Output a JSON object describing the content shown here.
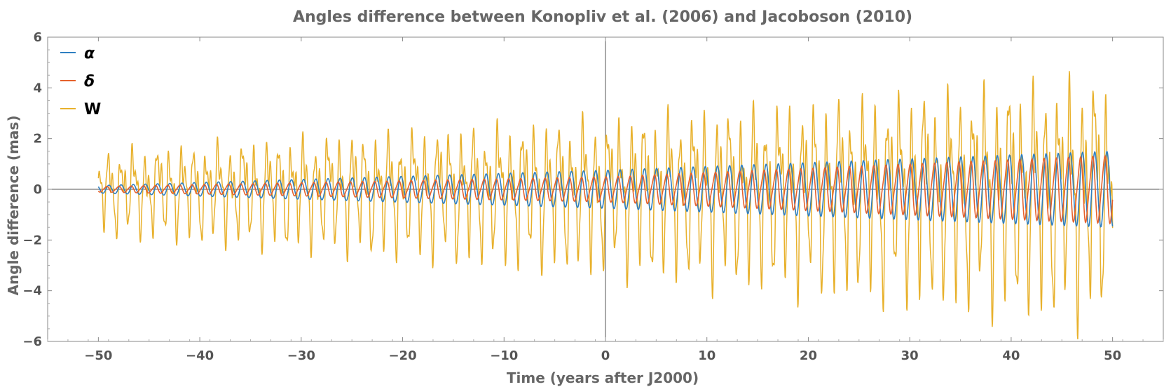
{
  "chart_data": {
    "type": "line",
    "title": "Angles difference between Konopliv et al. (2006) and Jacoboson (2010)",
    "xlabel": "Time (years after J2000)",
    "ylabel": "Angle difference (mas)",
    "xlim": [
      -55,
      55
    ],
    "ylim": [
      -6,
      6
    ],
    "x_range": [
      -50,
      50
    ],
    "xticks": [
      -50,
      -40,
      -30,
      -20,
      -10,
      0,
      10,
      20,
      30,
      40,
      50
    ],
    "yticks": [
      -6,
      -4,
      -2,
      0,
      2,
      4,
      6
    ],
    "xtick_labels": [
      "−50",
      "−40",
      "−30",
      "−20",
      "−10",
      "0",
      "10",
      "20",
      "30",
      "40",
      "50"
    ],
    "ytick_labels": [
      "−6",
      "−4",
      "−2",
      "0",
      "2",
      "4",
      "6"
    ],
    "legend_position": "top-left",
    "series": [
      {
        "name": "W",
        "color": "#E8B12C",
        "period_years": 1.2,
        "amplitude_at_minus50": 1.6,
        "amplitude_at_0": 2.9,
        "amplitude_at_50": 4.6,
        "peak_value_at_50": 4.3,
        "trough_value_at_50": -5.1
      },
      {
        "name": "α",
        "color": "#2F7FC1",
        "period_years": 1.2,
        "amplitude_at_minus50": 0.15,
        "amplitude_at_0": 0.75,
        "amplitude_at_50": 1.5
      },
      {
        "name": "δ",
        "color": "#E5612C",
        "period_years": 1.2,
        "amplitude_at_minus50": 0.12,
        "amplitude_at_0": 0.55,
        "amplitude_at_50": 1.5
      }
    ]
  }
}
